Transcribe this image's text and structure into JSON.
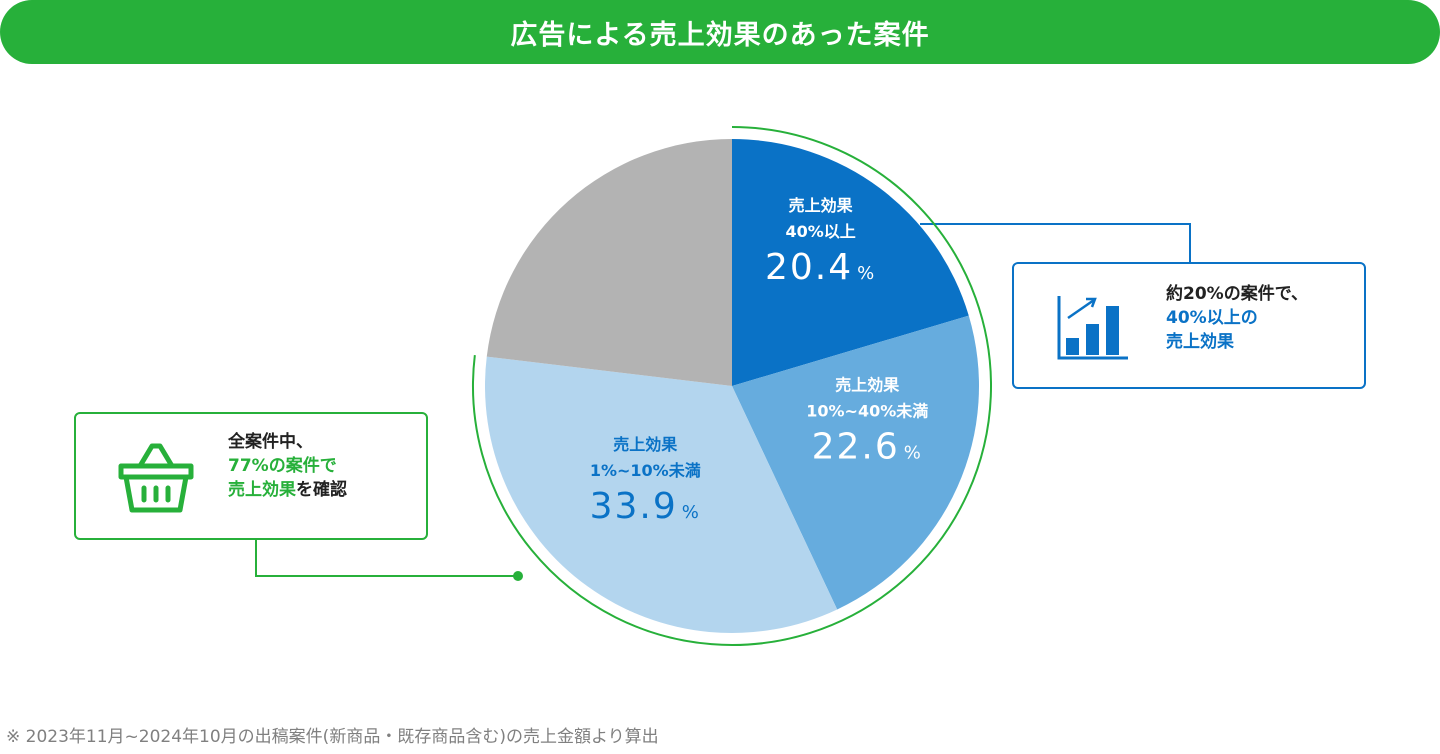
{
  "title": "広告による売上効果のあった案件",
  "chart_data": {
    "type": "pie",
    "slices": [
      {
        "label_line1": "売上効果",
        "label_line2": "40%以上",
        "value": 20.4,
        "value_text": "20.4",
        "unit": "%",
        "color": "#0a72c6",
        "text_color": "#ffffff"
      },
      {
        "label_line1": "売上効果",
        "label_line2": "10%~40%未満",
        "value": 22.6,
        "value_text": "22.6",
        "unit": "%",
        "color": "#66acde",
        "text_color": "#ffffff"
      },
      {
        "label_line1": "売上効果",
        "label_line2": "1%~10%未満",
        "value": 33.9,
        "value_text": "33.9",
        "unit": "%",
        "color": "#b3d5ee",
        "text_color": "#0a72c6"
      },
      {
        "label_line1": "",
        "label_line2": "",
        "value": 23.1,
        "value_text": "",
        "unit": "",
        "color": "#b3b3b3",
        "text_color": "#ffffff"
      }
    ],
    "highlight_arc_color": "#27b03a"
  },
  "callout_right": {
    "line1": "約20%の案件で、",
    "line2": "40%以上の",
    "line3": "売上効果",
    "icon": "bar-chart-growth-icon",
    "color": "#0a72c6"
  },
  "callout_left": {
    "line1": "全案件中、",
    "line2": "77%の案件で",
    "line3a": "売上効果",
    "line3b": "を確認",
    "icon": "shopping-basket-icon",
    "color": "#27b03a"
  },
  "footnote": "※ 2023年11月~2024年10月の出稿案件(新商品・既存商品含む)の売上金額より算出"
}
